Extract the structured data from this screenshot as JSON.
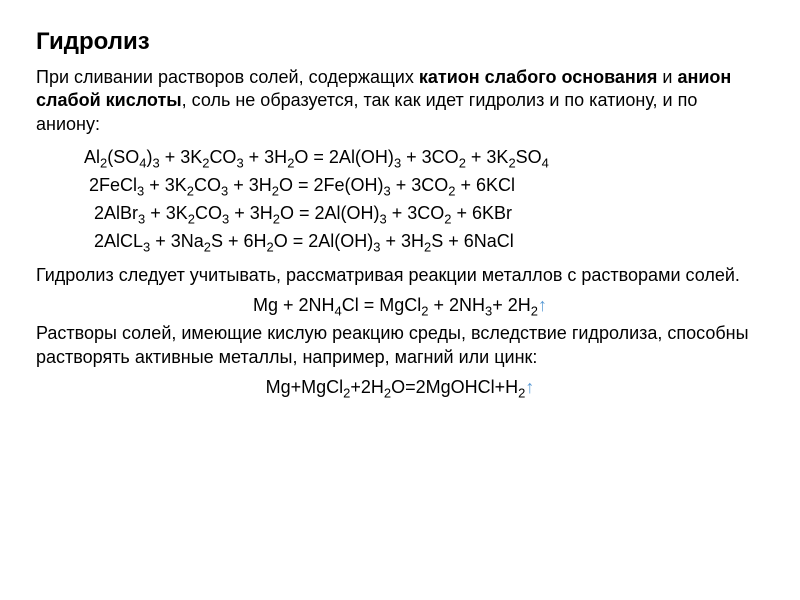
{
  "title": "Гидролиз",
  "intro_prefix": "При сливании растворов солей, содержащих ",
  "intro_bold1": "катион слабого основания",
  "intro_mid": " и ",
  "intro_bold2": "анион слабой кислоты",
  "intro_suffix": ", соль не образуется, так как идет гидролиз и по катиону, и по аниону:",
  "para2": "Гидролиз следует учитывать, рассматривая реакции металлов с растворами солей.",
  "para3": "Растворы солей, имеющие кислую реакцию среды, вследствие гидролиза, способны растворять активные металлы, например, магний или цинк:",
  "colors": {
    "text": "#000000",
    "background": "#ffffff",
    "arrow": "#5b9bd5"
  },
  "font": {
    "family": "Arial",
    "title_size_pt": 18,
    "body_size_pt": 14
  }
}
